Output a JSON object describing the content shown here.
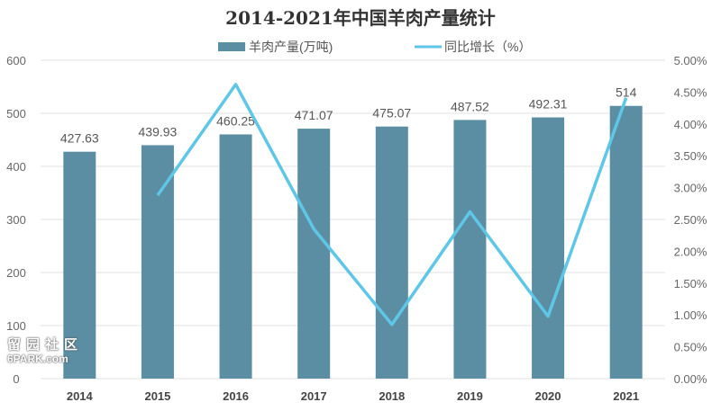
{
  "chart_data": {
    "type": "bar+line",
    "title": "2014-2021年中国羊肉产量统计",
    "categories": [
      "2014",
      "2015",
      "2016",
      "2017",
      "2018",
      "2019",
      "2020",
      "2021"
    ],
    "series": [
      {
        "name": "羊肉产量(万吨)",
        "type": "bar",
        "axis": "left",
        "color": "#5b8ea3",
        "values": [
          427.63,
          439.93,
          460.25,
          471.07,
          475.07,
          487.52,
          492.31,
          514
        ],
        "labels": [
          "427.63",
          "439.93",
          "460.25",
          "471.07",
          "475.07",
          "487.52",
          "492.31",
          "514"
        ]
      },
      {
        "name": "同比增长（%）",
        "type": "line",
        "axis": "right",
        "color": "#5ec6e6",
        "values": [
          null,
          2.88,
          4.62,
          2.35,
          0.85,
          2.62,
          0.98,
          4.41
        ]
      }
    ],
    "left_axis": {
      "range": [
        0,
        600
      ],
      "ticks": [
        "0",
        "100",
        "200",
        "300",
        "400",
        "500",
        "600"
      ]
    },
    "right_axis": {
      "range": [
        0,
        5
      ],
      "ticks": [
        "0.00%",
        "0.50%",
        "1.00%",
        "1.50%",
        "2.00%",
        "2.50%",
        "3.00%",
        "3.50%",
        "4.00%",
        "4.50%",
        "5.00%"
      ]
    },
    "grid": true,
    "legend": "top-center"
  },
  "watermark": {
    "cn": "留园社区",
    "en": "6PARK.com"
  }
}
